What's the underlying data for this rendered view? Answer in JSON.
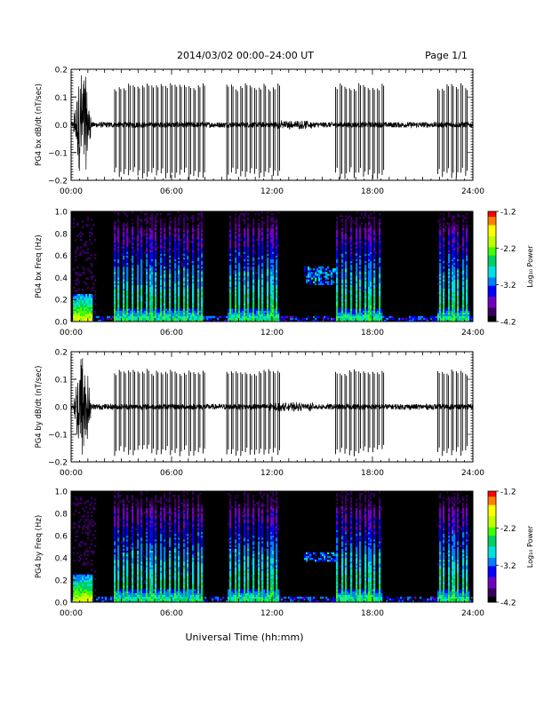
{
  "header": {
    "title": "2014/03/02   00:00–24:00 UT",
    "page": "Page 1/1"
  },
  "footer": {
    "xlabel": "Universal Time (hh:mm)"
  },
  "colors": {
    "spectrogram_background": "#000000",
    "waveform_line": "#000000",
    "colormap": [
      "#000000",
      "#3a0060",
      "#7000c0",
      "#0000ff",
      "#0080ff",
      "#00e0e0",
      "#00d060",
      "#40ff00",
      "#c0ff00",
      "#ffff00",
      "#ff8000",
      "#ff0000"
    ]
  },
  "chart_data": [
    {
      "type": "line",
      "title": "",
      "ylabel": "PG4 bx dB/dt (nT/sec)",
      "xlabel": "",
      "xlim": [
        0,
        24
      ],
      "ylim": [
        -0.2,
        0.2
      ],
      "x_ticks": [
        "00:00",
        "06:00",
        "12:00",
        "18:00",
        "24:00"
      ],
      "y_ticks": [
        "−0.2",
        "−0.1",
        "0.0",
        "0.1",
        "0.2"
      ],
      "grid": false,
      "burst_intervals_ut": [
        [
          2.6,
          7.9
        ],
        [
          9.3,
          12.4
        ],
        [
          15.8,
          18.6
        ],
        [
          21.9,
          23.8
        ]
      ],
      "burst_amplitude": [
        0.15,
        -0.2
      ],
      "background_noise_amplitude": 0.01,
      "early_event": {
        "ut": [
          0.15,
          1.2
        ],
        "amplitude": 0.2
      }
    },
    {
      "type": "heatmap",
      "title": "",
      "ylabel": "PG4 bx Freq (Hz)",
      "xlabel": "",
      "xlim": [
        0,
        24
      ],
      "ylim": [
        0.0,
        1.0
      ],
      "x_ticks": [
        "00:00",
        "06:00",
        "12:00",
        "18:00",
        "24:00"
      ],
      "y_ticks": [
        "0.0",
        "0.2",
        "0.4",
        "0.6",
        "0.8",
        "1.0"
      ],
      "colorbar": {
        "label": "Log₁₀ Power",
        "range": [
          -4.2,
          -1.2
        ],
        "ticks": [
          "-1.2",
          "-2.2",
          "-3.2",
          "-4.2"
        ]
      },
      "burst_intervals_ut": [
        [
          2.6,
          7.9
        ],
        [
          9.3,
          12.4
        ],
        [
          15.8,
          18.6
        ],
        [
          21.9,
          23.8
        ]
      ],
      "low_frequency_event": {
        "ut": [
          0.1,
          1.3
        ],
        "max_freq": 0.25
      },
      "narrowband_emission": {
        "ut": [
          13.9,
          15.9
        ],
        "freq": [
          0.33,
          0.5
        ]
      }
    },
    {
      "type": "line",
      "title": "",
      "ylabel": "PG4 by dB/dt (nT/sec)",
      "xlabel": "",
      "xlim": [
        0,
        24
      ],
      "ylim": [
        -0.2,
        0.2
      ],
      "x_ticks": [
        "00:00",
        "06:00",
        "12:00",
        "18:00",
        "24:00"
      ],
      "y_ticks": [
        "−0.2",
        "−0.1",
        "0.0",
        "0.1",
        "0.2"
      ],
      "grid": false,
      "burst_intervals_ut": [
        [
          2.6,
          7.9
        ],
        [
          9.3,
          12.4
        ],
        [
          15.8,
          18.6
        ],
        [
          21.9,
          23.8
        ]
      ],
      "burst_amplitude": [
        0.14,
        -0.18
      ],
      "background_noise_amplitude": 0.01,
      "early_event": {
        "ut": [
          0.15,
          1.2
        ],
        "amplitude": 0.2
      }
    },
    {
      "type": "heatmap",
      "title": "",
      "ylabel": "PG4 by Freq (Hz)",
      "xlabel": "",
      "xlim": [
        0,
        24
      ],
      "ylim": [
        0.0,
        1.0
      ],
      "x_ticks": [
        "00:00",
        "06:00",
        "12:00",
        "18:00",
        "24:00"
      ],
      "y_ticks": [
        "0.0",
        "0.2",
        "0.4",
        "0.6",
        "0.8",
        "1.0"
      ],
      "colorbar": {
        "label": "Log₁₀ Power",
        "range": [
          -4.2,
          -1.2
        ],
        "ticks": [
          "-1.2",
          "-2.2",
          "-3.2",
          "-4.2"
        ]
      },
      "burst_intervals_ut": [
        [
          2.6,
          7.9
        ],
        [
          9.3,
          12.4
        ],
        [
          15.8,
          18.6
        ],
        [
          21.9,
          23.8
        ]
      ],
      "low_frequency_event": {
        "ut": [
          0.1,
          1.3
        ],
        "max_freq": 0.25
      },
      "narrowband_emission": {
        "ut": [
          13.9,
          15.9
        ],
        "freq": [
          0.36,
          0.45
        ]
      }
    }
  ]
}
